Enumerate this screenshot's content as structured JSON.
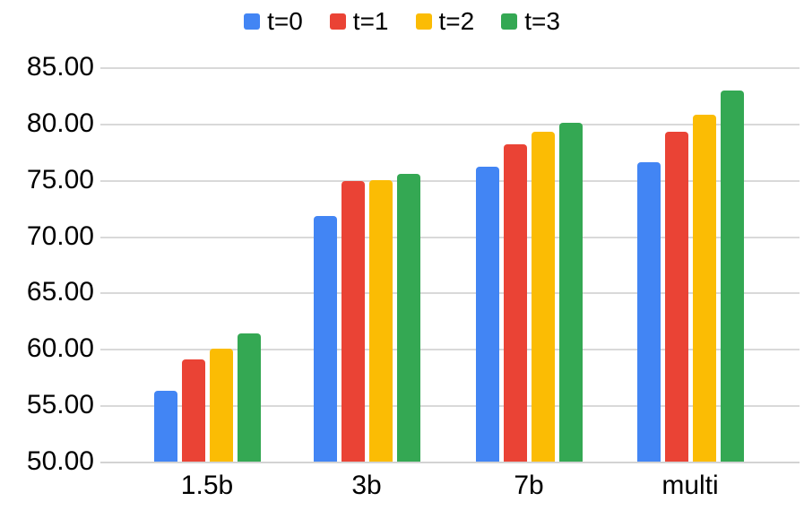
{
  "chart_data": {
    "type": "bar",
    "title": "",
    "xlabel": "",
    "ylabel": "",
    "categories": [
      "1.5b",
      "3b",
      "7b",
      "multi"
    ],
    "series": [
      {
        "name": "t=0",
        "color": "#4285F4",
        "values": [
          56.3,
          71.8,
          76.2,
          76.6
        ]
      },
      {
        "name": "t=1",
        "color": "#EA4335",
        "values": [
          59.1,
          74.9,
          78.2,
          79.3
        ]
      },
      {
        "name": "t=2",
        "color": "#FBBC04",
        "values": [
          60.0,
          75.0,
          79.3,
          80.8
        ]
      },
      {
        "name": "t=3",
        "color": "#34A853",
        "values": [
          61.4,
          75.5,
          80.1,
          82.9
        ]
      }
    ],
    "ylim": [
      50,
      85
    ],
    "ytick_step": 5,
    "ytick_labels": [
      "85.00",
      "80.00",
      "75.00",
      "70.00",
      "65.00",
      "60.00",
      "55.00",
      "50.00"
    ],
    "grid": true,
    "legend_position": "top",
    "colors": {
      "gridline": "#d9d9d9",
      "text": "#000000",
      "background": "#ffffff"
    }
  }
}
